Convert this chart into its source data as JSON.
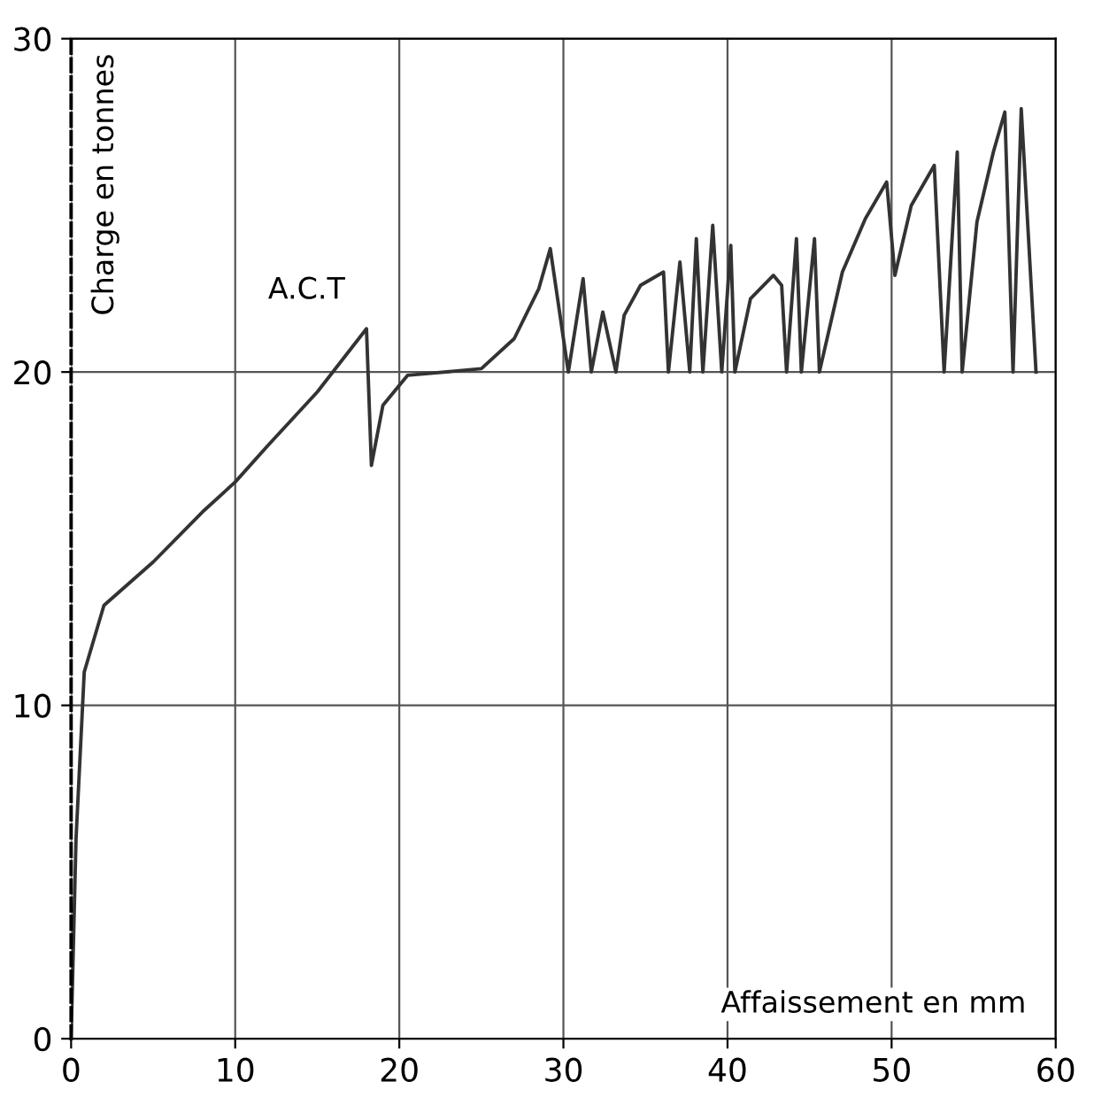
{
  "chart_data": {
    "type": "line",
    "xlabel": "Affaissement en mm",
    "ylabel": "Charge en tonnes",
    "xlim": [
      0,
      60
    ],
    "ylim": [
      0,
      30
    ],
    "xticks": [
      0,
      10,
      20,
      30,
      40,
      50,
      60
    ],
    "yticks": [
      0,
      10,
      20,
      30
    ],
    "grid": true,
    "annotations": [
      "A.C.T"
    ],
    "series": [
      {
        "color": "#333333",
        "x": [
          0,
          0.3,
          0.8,
          2,
          5,
          8,
          10,
          12,
          15,
          18,
          18.3,
          19,
          20.5,
          25,
          27,
          28.5,
          29.2,
          30.3,
          31.2,
          31.7,
          32.4,
          33.2,
          33.7,
          34.7,
          36.1,
          36.4,
          37.1,
          37.7,
          38.1,
          38.5,
          39.1,
          39.65,
          40.2,
          40.45,
          41.4,
          42.8,
          43.3,
          43.6,
          44.2,
          44.5,
          45.3,
          45.6,
          47.0,
          48.4,
          49.7,
          50.2,
          51.2,
          52.6,
          53.2,
          54.0,
          54.3,
          55.2,
          56.2,
          56.9,
          57.4,
          57.9,
          58.8
        ],
        "values": [
          0,
          6,
          11,
          13,
          14.3,
          15.8,
          16.7,
          17.8,
          19.4,
          21.3,
          17.2,
          19,
          19.9,
          20.1,
          21,
          22.5,
          23.7,
          20,
          22.8,
          20,
          21.8,
          20,
          21.7,
          22.6,
          23.0,
          20,
          23.3,
          20,
          24.0,
          20,
          24.4,
          20,
          23.8,
          20,
          22.2,
          22.9,
          22.6,
          20,
          24.0,
          20,
          24.0,
          20,
          23.0,
          24.6,
          25.7,
          22.9,
          25.0,
          26.2,
          20,
          26.6,
          20,
          24.5,
          26.6,
          27.8,
          20,
          27.9,
          20
        ]
      }
    ]
  }
}
